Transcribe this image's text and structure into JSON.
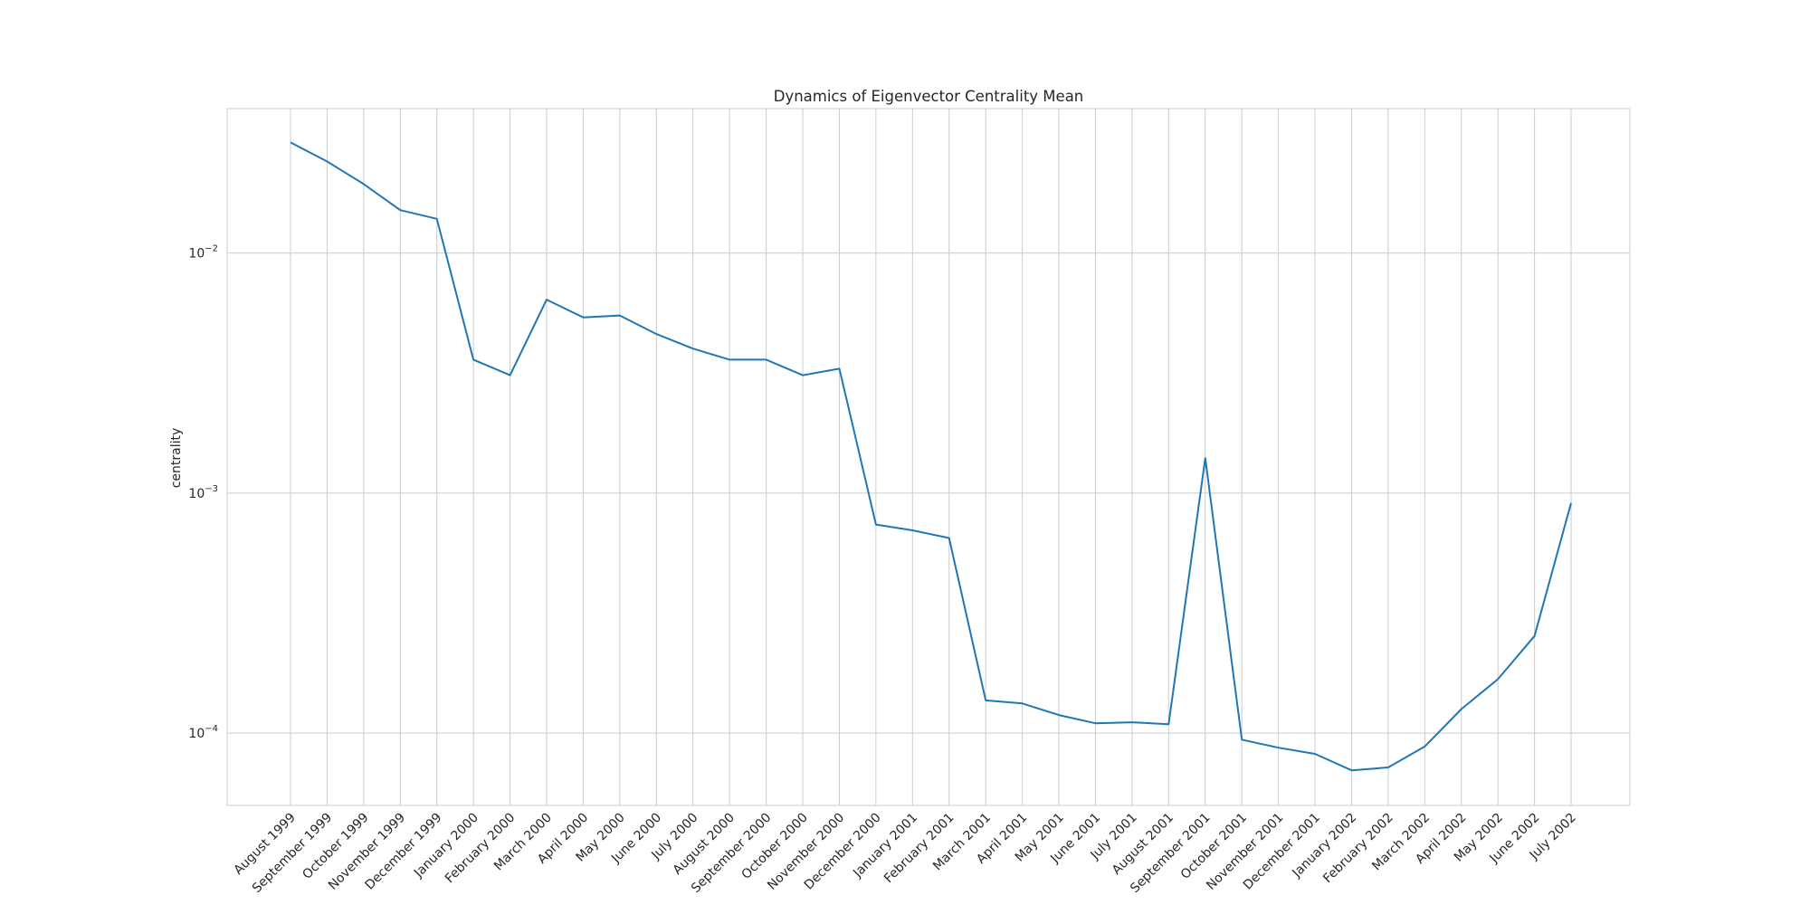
{
  "chart_data": {
    "type": "line",
    "title": "Dynamics of Eigenvector Centrality Mean",
    "xlabel": "",
    "ylabel": "centrality",
    "yscale": "log",
    "ylim": [
      5e-05,
      0.04
    ],
    "yticks": [
      {
        "value": 0.01,
        "base": "10",
        "exp": "−2"
      },
      {
        "value": 0.001,
        "base": "10",
        "exp": "−3"
      },
      {
        "value": 0.0001,
        "base": "10",
        "exp": "−4"
      }
    ],
    "grid": true,
    "legend": "none",
    "categories": [
      "August 1999",
      "September 1999",
      "October 1999",
      "November 1999",
      "December 1999",
      "January 2000",
      "February 2000",
      "March 2000",
      "April 2000",
      "May 2000",
      "June 2000",
      "July 2000",
      "August 2000",
      "September 2000",
      "October 2000",
      "November 2000",
      "December 2000",
      "January 2001",
      "February 2001",
      "March 2001",
      "April 2001",
      "May 2001",
      "June 2001",
      "July 2001",
      "August 2001",
      "September 2001",
      "October 2001",
      "November 2001",
      "December 2001",
      "January 2002",
      "February 2002",
      "March 2002",
      "April 2002",
      "May 2002",
      "June 2002",
      "July 2002"
    ],
    "series": [
      {
        "color": "#1f77b4",
        "values": [
          0.0289,
          0.0241,
          0.0194,
          0.0151,
          0.0139,
          0.0036,
          0.0031,
          0.0064,
          0.0054,
          0.0055,
          0.0046,
          0.004,
          0.0036,
          0.0036,
          0.0031,
          0.0033,
          0.00074,
          0.0007,
          0.00065,
          0.000137,
          0.000133,
          0.000119,
          0.00011,
          0.000111,
          0.000109,
          0.0014,
          9.4e-05,
          8.7e-05,
          8.2e-05,
          7e-05,
          7.2e-05,
          8.8e-05,
          0.000126,
          0.000168,
          0.000254,
          0.00091
        ]
      }
    ]
  }
}
